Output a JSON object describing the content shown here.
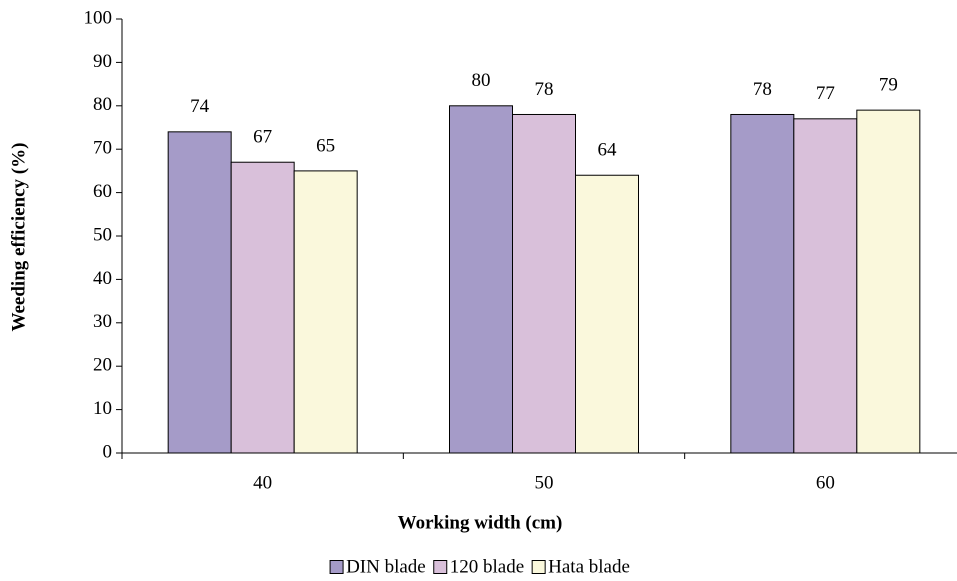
{
  "chart_data": {
    "type": "bar",
    "title": "",
    "xlabel": "Working width (cm)",
    "ylabel": "Weeding efficiency (%)",
    "categories": [
      "40",
      "50",
      "60"
    ],
    "ylim": [
      0,
      100
    ],
    "yticks": [
      "0",
      "10",
      "20",
      "30",
      "40",
      "50",
      "60",
      "70",
      "80",
      "90",
      "100"
    ],
    "grid": false,
    "legend_position": "bottom",
    "series": [
      {
        "name": "DIN blade",
        "values": [
          74,
          80,
          78
        ],
        "labels": [
          "74",
          "80",
          "78"
        ],
        "color": "#a59bc8"
      },
      {
        "name": "120 blade",
        "values": [
          67,
          78,
          77
        ],
        "labels": [
          "67",
          "78",
          "77"
        ],
        "color": "#d9c0da"
      },
      {
        "name": "Hata blade",
        "values": [
          65,
          64,
          79
        ],
        "labels": [
          "65",
          "64",
          "79"
        ],
        "color": "#faf8dc"
      }
    ]
  }
}
